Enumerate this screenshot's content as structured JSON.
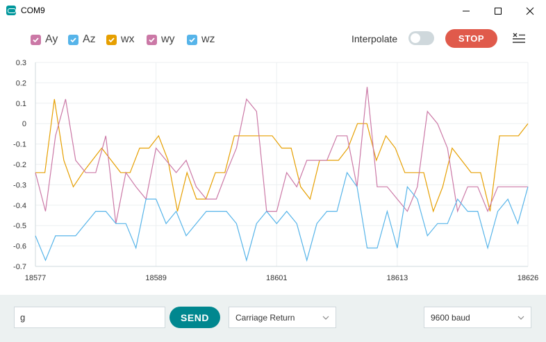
{
  "window": {
    "title": "COM9",
    "icons": {
      "app": "arduino-icon",
      "minimize": "minimize-icon",
      "maximize": "maximize-icon",
      "close": "close-icon"
    }
  },
  "toolbar": {
    "interpolate_label": "Interpolate",
    "interpolate_on": false,
    "stop_label": "STOP",
    "clear_icon": "clear-list-icon"
  },
  "legend": [
    {
      "label": "Ay",
      "color": "#cb78a6",
      "checked": true
    },
    {
      "label": "Az",
      "color": "#56b4e9",
      "checked": true
    },
    {
      "label": "wx",
      "color": "#e69f00",
      "checked": true
    },
    {
      "label": "wy",
      "color": "#cb78a6",
      "checked": true
    },
    {
      "label": "wz",
      "color": "#56b4e9",
      "checked": true
    }
  ],
  "chart_data": {
    "type": "line",
    "title": "",
    "xlabel": "",
    "ylabel": "",
    "xlim": [
      18577,
      18626
    ],
    "ylim": [
      -0.7,
      0.3
    ],
    "y_ticks": [
      "0.3",
      "0.2",
      "0.1",
      "0",
      "-0.1",
      "-0.2",
      "-0.3",
      "-0.4",
      "-0.5",
      "-0.6",
      "-0.7"
    ],
    "x_ticks": [
      "18577",
      "18589",
      "18601",
      "18613",
      "18626"
    ],
    "grid": true,
    "legend_position": "top-left",
    "series": [
      {
        "name": "wx",
        "color": "#e69f00",
        "values": [
          -0.24,
          -0.24,
          0.12,
          -0.18,
          -0.31,
          -0.24,
          -0.18,
          -0.12,
          -0.18,
          -0.24,
          -0.24,
          -0.12,
          -0.12,
          -0.06,
          -0.18,
          -0.43,
          -0.24,
          -0.37,
          -0.37,
          -0.24,
          -0.24,
          -0.06,
          -0.06,
          -0.06,
          -0.06,
          -0.06,
          -0.12,
          -0.12,
          -0.31,
          -0.37,
          -0.18,
          -0.18,
          -0.18,
          -0.12,
          0.0,
          0.0,
          -0.18,
          -0.06,
          -0.12,
          -0.24,
          -0.24,
          -0.24,
          -0.43,
          -0.31,
          -0.12,
          -0.18,
          -0.24,
          -0.24,
          -0.43,
          -0.06,
          -0.06,
          -0.06,
          0.0
        ]
      },
      {
        "name": "wy",
        "color": "#cb78a6",
        "values": [
          -0.24,
          -0.43,
          -0.06,
          0.12,
          -0.18,
          -0.24,
          -0.24,
          -0.06,
          -0.49,
          -0.24,
          -0.31,
          -0.37,
          -0.12,
          -0.18,
          -0.24,
          -0.18,
          -0.31,
          -0.37,
          -0.37,
          -0.24,
          -0.12,
          0.12,
          0.06,
          -0.43,
          -0.43,
          -0.24,
          -0.31,
          -0.18,
          -0.18,
          -0.18,
          -0.06,
          -0.06,
          -0.31,
          0.18,
          -0.31,
          -0.31,
          -0.37,
          -0.43,
          -0.31,
          0.06,
          0.0,
          -0.12,
          -0.43,
          -0.31,
          -0.31,
          -0.43,
          -0.31,
          -0.31,
          -0.31,
          -0.31
        ]
      },
      {
        "name": "wz",
        "color": "#56b4e9",
        "values": [
          -0.55,
          -0.67,
          -0.55,
          -0.55,
          -0.55,
          -0.49,
          -0.43,
          -0.43,
          -0.49,
          -0.49,
          -0.61,
          -0.37,
          -0.37,
          -0.49,
          -0.43,
          -0.55,
          -0.49,
          -0.43,
          -0.43,
          -0.43,
          -0.49,
          -0.67,
          -0.49,
          -0.43,
          -0.49,
          -0.43,
          -0.49,
          -0.67,
          -0.49,
          -0.43,
          -0.43,
          -0.24,
          -0.31,
          -0.61,
          -0.61,
          -0.43,
          -0.61,
          -0.31,
          -0.37,
          -0.55,
          -0.49,
          -0.49,
          -0.37,
          -0.43,
          -0.43,
          -0.61,
          -0.43,
          -0.37,
          -0.49,
          -0.31
        ]
      }
    ]
  },
  "input": {
    "value": "g",
    "placeholder": "",
    "send_label": "SEND"
  },
  "line_ending": {
    "selected": "Carriage Return",
    "icon": "chevron-down-icon"
  },
  "baud": {
    "selected": "9600 baud",
    "icon": "chevron-down-icon"
  }
}
